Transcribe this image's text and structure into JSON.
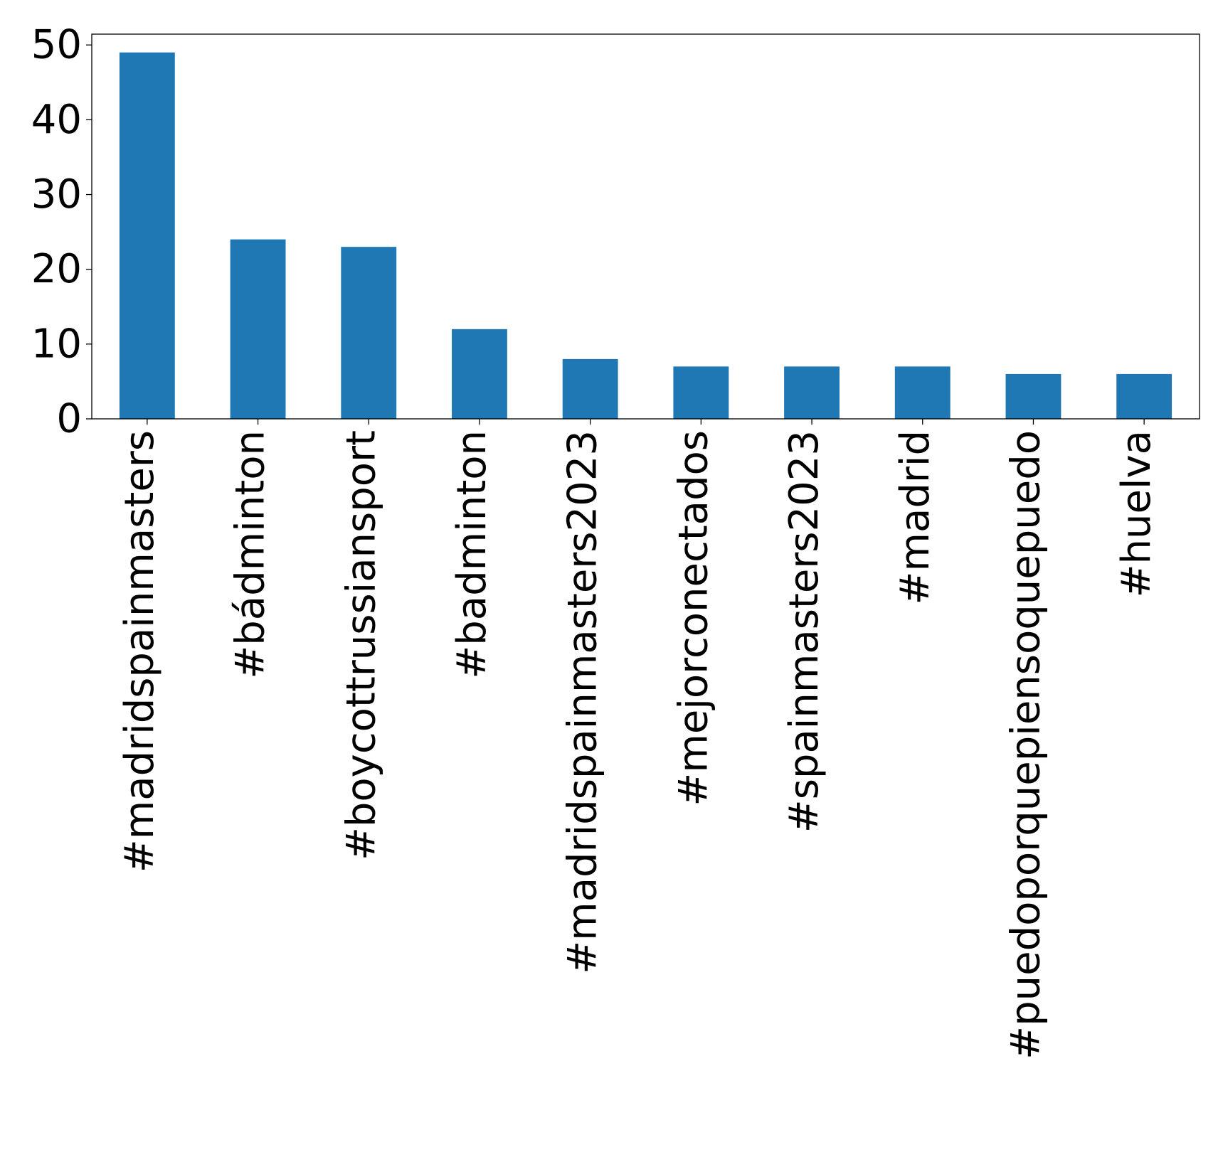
{
  "chart_data": {
    "type": "bar",
    "categories": [
      "#madridspainmasters",
      "#bádminton",
      "#boycottrussiansport",
      "#badminton",
      "#madridspainmasters2023",
      "#mejorconectados",
      "#spainmasters2023",
      "#madrid",
      "#puedoporquepiensoquepuedo",
      "#huelva"
    ],
    "values": [
      49,
      24,
      23,
      12,
      8,
      7,
      7,
      7,
      6,
      6
    ],
    "ylim": [
      0,
      51.45
    ],
    "yticks": [
      "0",
      "10",
      "20",
      "30",
      "40",
      "50"
    ],
    "bar_color": "#1f77b4",
    "grid": false,
    "legend": false
  }
}
